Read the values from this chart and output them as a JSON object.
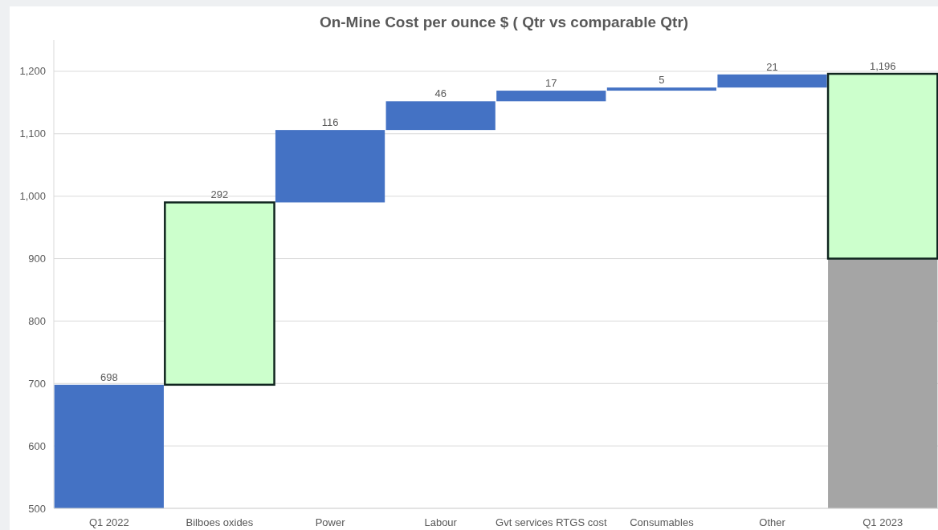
{
  "chart_data": {
    "type": "bar",
    "title": "On-Mine Cost per ounce $  ( Qtr vs comparable Qtr)",
    "categories": [
      "Q1 2022",
      "Bilboes oxides",
      "Power",
      "Labour",
      "Gvt services RTGS cost",
      "Consumables",
      "Other",
      "Q1 2023"
    ],
    "series": [
      {
        "values": [
          null,
          null,
          null,
          null,
          null,
          null,
          null,
          900
        ],
        "color": "#a5a5a5"
      },
      {
        "values": [
          698,
          292,
          116,
          46,
          17,
          5,
          21,
          296
        ],
        "base": [
          null,
          698,
          990,
          1106,
          1152,
          1169,
          1174,
          900
        ],
        "colors": [
          "#4472c4",
          "#ccffcc",
          "#4472c4",
          "#4472c4",
          "#4472c4",
          "#4472c4",
          "#4472c4",
          "#ccffcc"
        ],
        "value_labels": [
          "698",
          "292",
          "116",
          "46",
          "17",
          "5",
          "21",
          "1,196"
        ]
      }
    ],
    "ylim": [
      500,
      1250
    ],
    "yticks": [
      {
        "value": 500,
        "label": "500"
      },
      {
        "value": 600,
        "label": "600"
      },
      {
        "value": 700,
        "label": "700"
      },
      {
        "value": 800,
        "label": "800"
      },
      {
        "value": 900,
        "label": "900"
      },
      {
        "value": 1000,
        "label": "1,000"
      },
      {
        "value": 1100,
        "label": "1,100"
      },
      {
        "value": 1200,
        "label": "1,200"
      }
    ],
    "grid": "y"
  }
}
